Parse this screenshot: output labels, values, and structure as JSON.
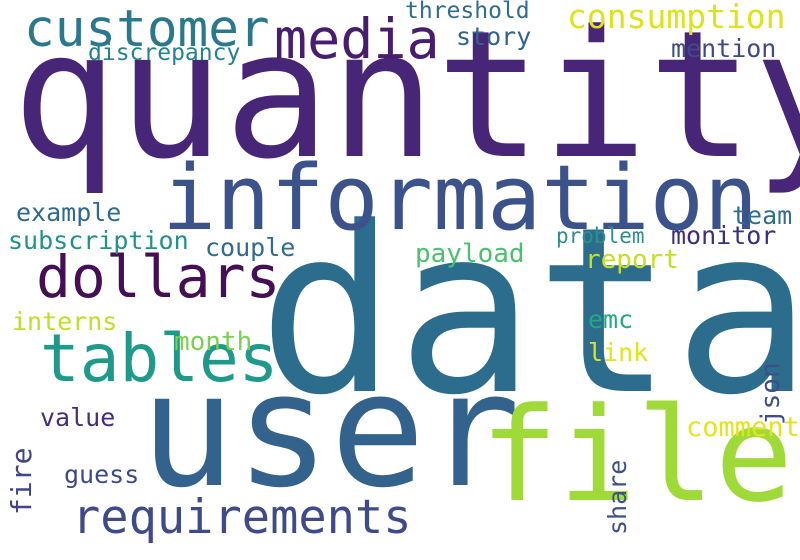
{
  "words": [
    {
      "text": "quantity",
      "color": "#482677"
    },
    {
      "text": "data",
      "color": "#2c6d8e"
    },
    {
      "text": "user",
      "color": "#33638d"
    },
    {
      "text": "file",
      "color": "#a0da39"
    },
    {
      "text": "information",
      "color": "#3b528b"
    },
    {
      "text": "tables",
      "color": "#1f9a8a"
    },
    {
      "text": "requirements",
      "color": "#3e4a89"
    },
    {
      "text": "dollars",
      "color": "#440f55"
    },
    {
      "text": "media",
      "color": "#481d6f"
    },
    {
      "text": "customer",
      "color": "#2a788e"
    },
    {
      "text": "consumption",
      "color": "#dde318"
    },
    {
      "text": "threshold",
      "color": "#2e6e8e"
    },
    {
      "text": "story",
      "color": "#33638d"
    },
    {
      "text": "discrepancy",
      "color": "#26828e"
    },
    {
      "text": "mention",
      "color": "#3e4a89"
    },
    {
      "text": "example",
      "color": "#31688e"
    },
    {
      "text": "team",
      "color": "#2e6e8e"
    },
    {
      "text": "subscription",
      "color": "#20928c"
    },
    {
      "text": "couple",
      "color": "#2f6c8e"
    },
    {
      "text": "monitor",
      "color": "#3b2f7f"
    },
    {
      "text": "problem",
      "color": "#2f8f8b"
    },
    {
      "text": "payload",
      "color": "#4ac16d"
    },
    {
      "text": "report",
      "color": "#c5e021"
    },
    {
      "text": "interns",
      "color": "#bddf26"
    },
    {
      "text": "emc",
      "color": "#23a883"
    },
    {
      "text": "json",
      "color": "#3d4e8a"
    },
    {
      "text": "month",
      "color": "#7ad151"
    },
    {
      "text": "link",
      "color": "#e3e418"
    },
    {
      "text": "fire",
      "color": "#414487"
    },
    {
      "text": "value",
      "color": "#472d7b"
    },
    {
      "text": "comment",
      "color": "#e5e419"
    },
    {
      "text": "guess",
      "color": "#3e4989"
    },
    {
      "text": "share",
      "color": "#3c508b"
    }
  ]
}
